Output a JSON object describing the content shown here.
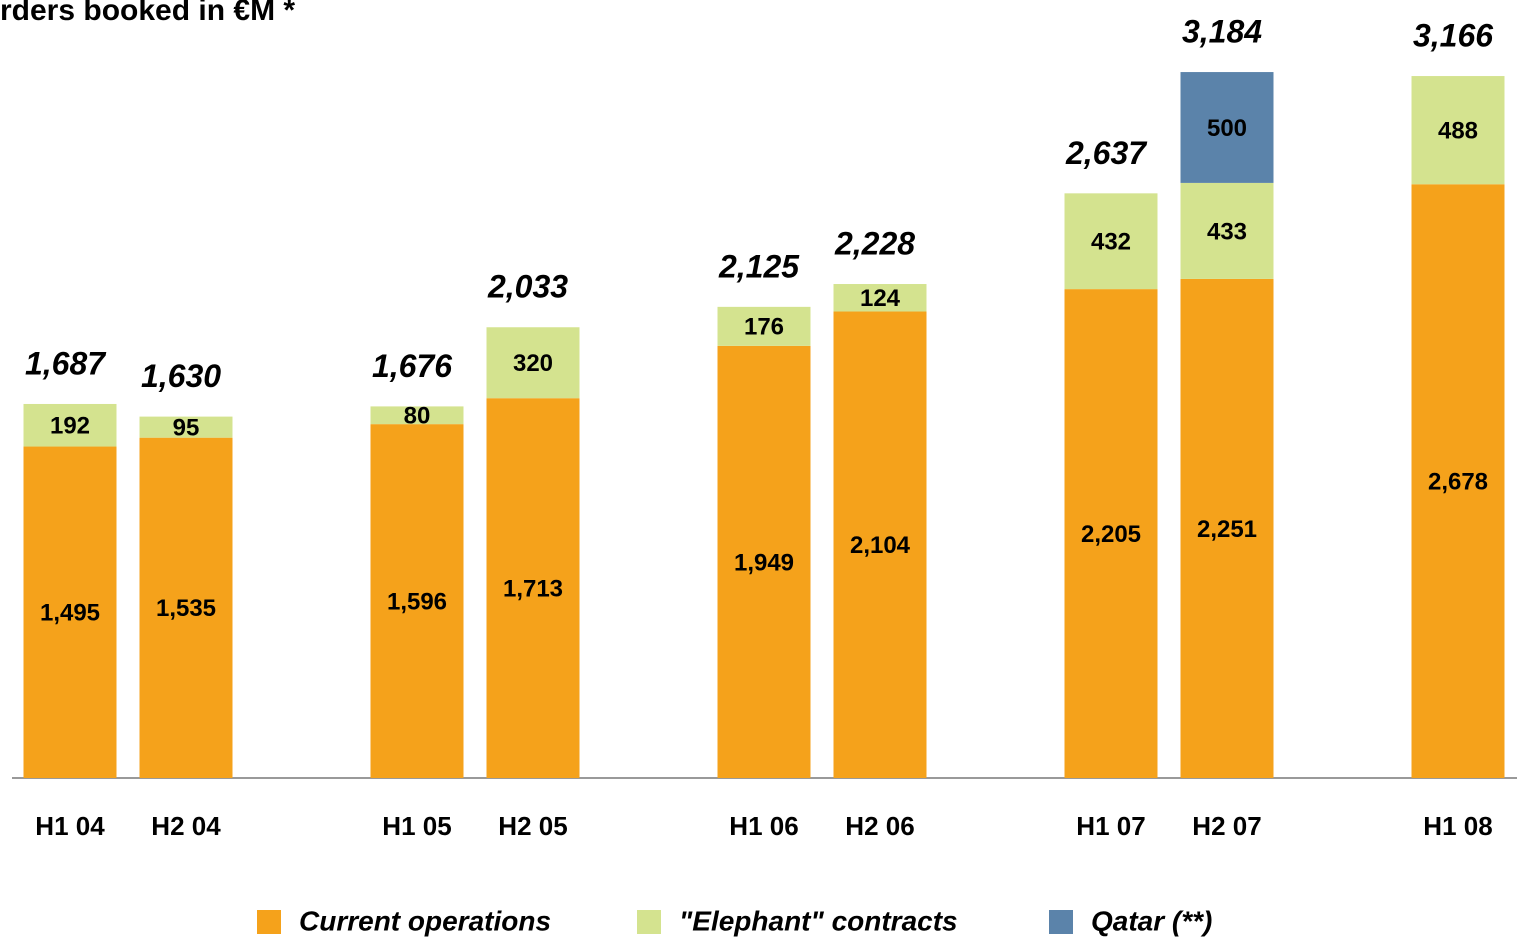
{
  "chart_data": {
    "type": "stacked_bar",
    "title": "rders booked in €M *",
    "categories": [
      "H1 04",
      "H2 04",
      "H1 05",
      "H2 05",
      "H1 06",
      "H2 06",
      "H1 07",
      "H2 07",
      "H1 08"
    ],
    "series": [
      {
        "name": "Current operations",
        "color": "#f5a21b",
        "values": [
          1495,
          1535,
          1596,
          1713,
          1949,
          2104,
          2205,
          2251,
          2678
        ],
        "value_labels": [
          "1,495",
          "1,535",
          "1,596",
          "1,713",
          "1,949",
          "2,104",
          "2,205",
          "2,251",
          "2,678"
        ]
      },
      {
        "name": "\"Elephant\" contracts",
        "color": "#d4e38f",
        "values": [
          192,
          95,
          80,
          320,
          176,
          124,
          432,
          433,
          488
        ]
      },
      {
        "name": "Qatar (**)",
        "color": "#5b83aa",
        "values": [
          null,
          null,
          null,
          null,
          null,
          null,
          null,
          500,
          null
        ]
      }
    ],
    "totals": [
      1687,
      1630,
      1676,
      2033,
      2125,
      2228,
      2637,
      3184,
      3166
    ],
    "total_labels": [
      "1,687",
      "1,630",
      "1,676",
      "2,033",
      "2,125",
      "2,228",
      "2,637",
      "3,184",
      "3,166"
    ],
    "ylim": [
      0,
      3500
    ]
  }
}
